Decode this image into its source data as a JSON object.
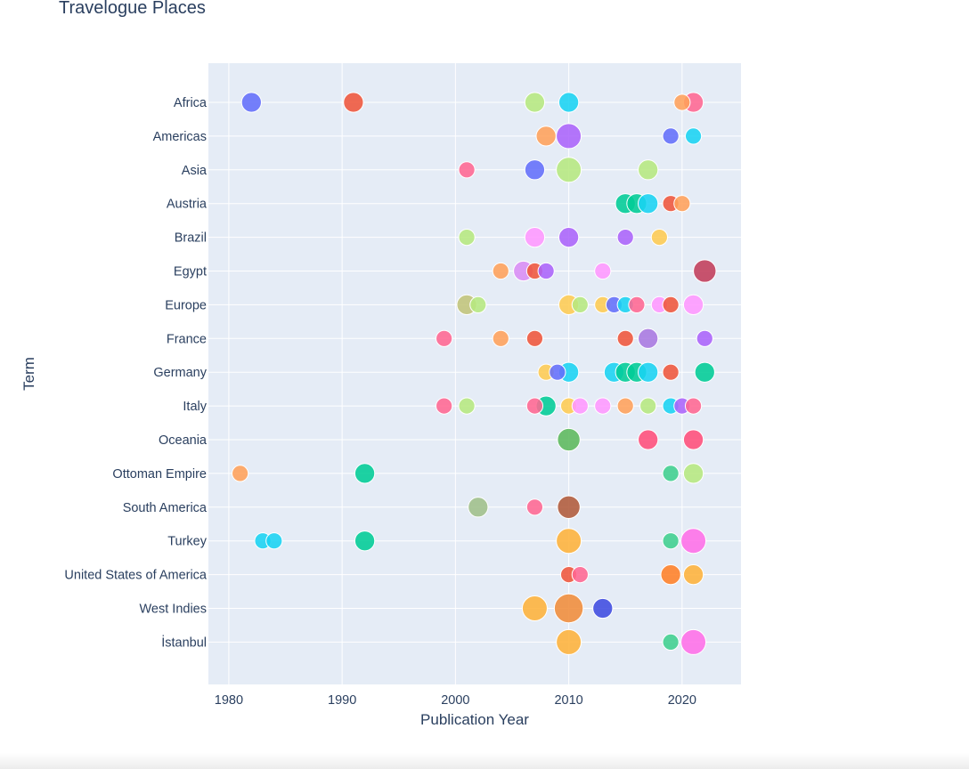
{
  "chart_data": {
    "type": "scatter",
    "title": "Travelogue Places",
    "xlabel": "Publication Year",
    "ylabel": "Term",
    "xlim": [
      1978.2,
      2025.2
    ],
    "xticks": [
      1980,
      1990,
      2000,
      2010,
      2020
    ],
    "grid": true,
    "categories": [
      "Africa",
      "Americas",
      "Asia",
      "Austria",
      "Brazil",
      "Egypt",
      "Europe",
      "France",
      "Germany",
      "Italy",
      "Oceania",
      "Ottoman Empire",
      "South America",
      "Turkey",
      "United States of America",
      "West Indies",
      "İstanbul"
    ],
    "points": [
      {
        "term": "Africa",
        "x": 1982,
        "size": 2,
        "color": "#636efa"
      },
      {
        "term": "Africa",
        "x": 1991,
        "size": 2,
        "color": "#ef553b"
      },
      {
        "term": "Africa",
        "x": 2007,
        "size": 2,
        "color": "#b6e880"
      },
      {
        "term": "Africa",
        "x": 2010,
        "size": 2,
        "color": "#19d3f3"
      },
      {
        "term": "Africa",
        "x": 2020,
        "size": 1,
        "color": "#ffa15a"
      },
      {
        "term": "Africa",
        "x": 2021,
        "size": 2,
        "color": "#ff6692"
      },
      {
        "term": "Americas",
        "x": 2008,
        "size": 2,
        "color": "#ffa15a"
      },
      {
        "term": "Americas",
        "x": 2010,
        "size": 4,
        "color": "#ab63fa"
      },
      {
        "term": "Americas",
        "x": 2019,
        "size": 1,
        "color": "#636efa"
      },
      {
        "term": "Americas",
        "x": 2021,
        "size": 1,
        "color": "#19d3f3"
      },
      {
        "term": "Asia",
        "x": 2001,
        "size": 1,
        "color": "#ff6692"
      },
      {
        "term": "Asia",
        "x": 2007,
        "size": 2,
        "color": "#636efa"
      },
      {
        "term": "Asia",
        "x": 2010,
        "size": 4,
        "color": "#b6e880"
      },
      {
        "term": "Asia",
        "x": 2017,
        "size": 2,
        "color": "#b6e880"
      },
      {
        "term": "Austria",
        "x": 2015,
        "size": 2,
        "color": "#00cc96"
      },
      {
        "term": "Austria",
        "x": 2016,
        "size": 2,
        "color": "#00cc96"
      },
      {
        "term": "Austria",
        "x": 2017,
        "size": 2,
        "color": "#19d3f3"
      },
      {
        "term": "Austria",
        "x": 2019,
        "size": 1,
        "color": "#ef553b"
      },
      {
        "term": "Austria",
        "x": 2020,
        "size": 1,
        "color": "#ffa15a"
      },
      {
        "term": "Brazil",
        "x": 2001,
        "size": 1,
        "color": "#b6e880"
      },
      {
        "term": "Brazil",
        "x": 2007,
        "size": 2,
        "color": "#ff97ff"
      },
      {
        "term": "Brazil",
        "x": 2010,
        "size": 2,
        "color": "#ab63fa"
      },
      {
        "term": "Brazil",
        "x": 2015,
        "size": 1,
        "color": "#ab63fa"
      },
      {
        "term": "Brazil",
        "x": 2018,
        "size": 1,
        "color": "#fecb52"
      },
      {
        "term": "Egypt",
        "x": 2004,
        "size": 1,
        "color": "#ffa15a"
      },
      {
        "term": "Egypt",
        "x": 2006,
        "size": 2,
        "color": "#d98cf5"
      },
      {
        "term": "Egypt",
        "x": 2007,
        "size": 1,
        "color": "#ef553b"
      },
      {
        "term": "Egypt",
        "x": 2008,
        "size": 1,
        "color": "#ab63fa"
      },
      {
        "term": "Egypt",
        "x": 2013,
        "size": 1,
        "color": "#ff97ff"
      },
      {
        "term": "Egypt",
        "x": 2022,
        "size": 3,
        "color": "#c13c5a"
      },
      {
        "term": "Europe",
        "x": 2001,
        "size": 2,
        "color": "#c2c47a"
      },
      {
        "term": "Europe",
        "x": 2002,
        "size": 1,
        "color": "#b6e880"
      },
      {
        "term": "Europe",
        "x": 2010,
        "size": 2,
        "color": "#fecb52"
      },
      {
        "term": "Europe",
        "x": 2011,
        "size": 1,
        "color": "#b6e880"
      },
      {
        "term": "Europe",
        "x": 2013,
        "size": 1,
        "color": "#fecb52"
      },
      {
        "term": "Europe",
        "x": 2014,
        "size": 1,
        "color": "#636efa"
      },
      {
        "term": "Europe",
        "x": 2015,
        "size": 1,
        "color": "#19d3f3"
      },
      {
        "term": "Europe",
        "x": 2016,
        "size": 1,
        "color": "#ff6692"
      },
      {
        "term": "Europe",
        "x": 2018,
        "size": 1,
        "color": "#ff97ff"
      },
      {
        "term": "Europe",
        "x": 2019,
        "size": 1,
        "color": "#ef553b"
      },
      {
        "term": "Europe",
        "x": 2021,
        "size": 2,
        "color": "#ff97ff"
      },
      {
        "term": "France",
        "x": 1999,
        "size": 1,
        "color": "#ff6692"
      },
      {
        "term": "France",
        "x": 2004,
        "size": 1,
        "color": "#ffa15a"
      },
      {
        "term": "France",
        "x": 2007,
        "size": 1,
        "color": "#ef553b"
      },
      {
        "term": "France",
        "x": 2015,
        "size": 1,
        "color": "#ef553b"
      },
      {
        "term": "France",
        "x": 2017,
        "size": 2,
        "color": "#a877e0"
      },
      {
        "term": "France",
        "x": 2022,
        "size": 1,
        "color": "#ab63fa"
      },
      {
        "term": "Germany",
        "x": 2008,
        "size": 1,
        "color": "#fecb52"
      },
      {
        "term": "Germany",
        "x": 2009,
        "size": 1,
        "color": "#636efa"
      },
      {
        "term": "Germany",
        "x": 2010,
        "size": 2,
        "color": "#19d3f3"
      },
      {
        "term": "Germany",
        "x": 2014,
        "size": 2,
        "color": "#19d3f3"
      },
      {
        "term": "Germany",
        "x": 2015,
        "size": 2,
        "color": "#00cc96"
      },
      {
        "term": "Germany",
        "x": 2016,
        "size": 2,
        "color": "#00cc96"
      },
      {
        "term": "Germany",
        "x": 2017,
        "size": 2,
        "color": "#19d3f3"
      },
      {
        "term": "Germany",
        "x": 2019,
        "size": 1,
        "color": "#ef553b"
      },
      {
        "term": "Germany",
        "x": 2022,
        "size": 2,
        "color": "#00cc96"
      },
      {
        "term": "Italy",
        "x": 1999,
        "size": 1,
        "color": "#ff6692"
      },
      {
        "term": "Italy",
        "x": 2001,
        "size": 1,
        "color": "#b6e880"
      },
      {
        "term": "Italy",
        "x": 2007,
        "size": 1,
        "color": "#ff6692"
      },
      {
        "term": "Italy",
        "x": 2008,
        "size": 2,
        "color": "#00cc96"
      },
      {
        "term": "Italy",
        "x": 2010,
        "size": 1,
        "color": "#fecb52"
      },
      {
        "term": "Italy",
        "x": 2011,
        "size": 1,
        "color": "#ff97ff"
      },
      {
        "term": "Italy",
        "x": 2013,
        "size": 1,
        "color": "#ff97ff"
      },
      {
        "term": "Italy",
        "x": 2015,
        "size": 1,
        "color": "#ffa15a"
      },
      {
        "term": "Italy",
        "x": 2017,
        "size": 1,
        "color": "#b6e880"
      },
      {
        "term": "Italy",
        "x": 2019,
        "size": 1,
        "color": "#19d3f3"
      },
      {
        "term": "Italy",
        "x": 2020,
        "size": 1,
        "color": "#ab63fa"
      },
      {
        "term": "Italy",
        "x": 2021,
        "size": 1,
        "color": "#ff6692"
      },
      {
        "term": "Oceania",
        "x": 2010,
        "size": 3,
        "color": "#5cb85c"
      },
      {
        "term": "Oceania",
        "x": 2017,
        "size": 2,
        "color": "#ff4d7a"
      },
      {
        "term": "Oceania",
        "x": 2021,
        "size": 2,
        "color": "#ff4d7a"
      },
      {
        "term": "Ottoman Empire",
        "x": 1981,
        "size": 1,
        "color": "#ffa15a"
      },
      {
        "term": "Ottoman Empire",
        "x": 1992,
        "size": 2,
        "color": "#00cc96"
      },
      {
        "term": "Ottoman Empire",
        "x": 2019,
        "size": 1,
        "color": "#3fcf8e"
      },
      {
        "term": "Ottoman Empire",
        "x": 2021,
        "size": 2,
        "color": "#b6e880"
      },
      {
        "term": "South America",
        "x": 2002,
        "size": 2,
        "color": "#9fbf8a"
      },
      {
        "term": "South America",
        "x": 2007,
        "size": 1,
        "color": "#ff6692"
      },
      {
        "term": "South America",
        "x": 2010,
        "size": 3,
        "color": "#b05a3a"
      },
      {
        "term": "Turkey",
        "x": 1983,
        "size": 1,
        "color": "#19d3f3"
      },
      {
        "term": "Turkey",
        "x": 1984,
        "size": 1,
        "color": "#19d3f3"
      },
      {
        "term": "Turkey",
        "x": 1992,
        "size": 2,
        "color": "#00cc96"
      },
      {
        "term": "Turkey",
        "x": 2010,
        "size": 4,
        "color": "#feb23a"
      },
      {
        "term": "Turkey",
        "x": 2019,
        "size": 1,
        "color": "#3fcf8e"
      },
      {
        "term": "Turkey",
        "x": 2021,
        "size": 4,
        "color": "#ff6ee8"
      },
      {
        "term": "United States of America",
        "x": 2010,
        "size": 1,
        "color": "#ef553b"
      },
      {
        "term": "United States of America",
        "x": 2011,
        "size": 1,
        "color": "#ff6692"
      },
      {
        "term": "United States of America",
        "x": 2019,
        "size": 2,
        "color": "#ff7f27"
      },
      {
        "term": "United States of America",
        "x": 2021,
        "size": 2,
        "color": "#feb23a"
      },
      {
        "term": "West Indies",
        "x": 2007,
        "size": 4,
        "color": "#feb23a"
      },
      {
        "term": "West Indies",
        "x": 2010,
        "size": 6,
        "color": "#f08c3a"
      },
      {
        "term": "West Indies",
        "x": 2013,
        "size": 2,
        "color": "#3f4be0"
      },
      {
        "term": "İstanbul",
        "x": 2010,
        "size": 4,
        "color": "#feb23a"
      },
      {
        "term": "İstanbul",
        "x": 2019,
        "size": 1,
        "color": "#3fcf8e"
      },
      {
        "term": "İstanbul",
        "x": 2021,
        "size": 4,
        "color": "#ff6ee8"
      }
    ]
  }
}
